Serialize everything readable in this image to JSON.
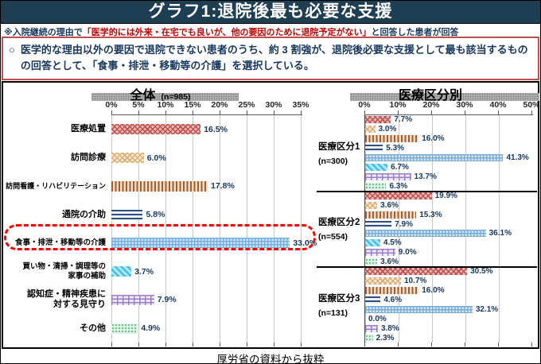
{
  "slide": {
    "title": "グラフ1:退院後最も必要な支援",
    "note": {
      "prefix": "※入院継続の理由で",
      "quote": "「医学的には外来・在宅でも良いが、他の要因のために退院予定がない」",
      "suffix": "と回答した患者が回答"
    },
    "summary_marker": "○",
    "summary_text": "医学的な理由以外の要因で退院できない患者のうち、約 3 割強が、退院後必要な支援として最も該当するものの回答として、「食事・排泄・移動等の介護」を選択している。",
    "caption": "厚労省の資料から抜粋"
  },
  "colors": {
    "title_bar_bg": "#1d3e53",
    "title_text": "#ffffff",
    "note_quote_red": "#c00000",
    "summary_border_red": "#c0504d",
    "value_label_navy": "#17375e",
    "highlight_dashed_red": "#ff0000",
    "gridline_gray": "#c8c8c8",
    "header_band_gray": "#a6a6a6"
  },
  "category_patterns": [
    {
      "category": "医療処置",
      "style": "lattice",
      "base": "#e9bcbc",
      "accent": "#c0504d"
    },
    {
      "category": "訪問診療",
      "style": "lattice",
      "base": "#f6ecd8",
      "accent": "#ddab72"
    },
    {
      "category": "訪問看護・リハビリテーション",
      "style": "vstripes",
      "base": "#f1e0d0",
      "accent": "#a85a28"
    },
    {
      "category": "通院の介助",
      "style": "hstripes",
      "base": "#eef2f8",
      "accent": "#2e4e80"
    },
    {
      "category": "食事・排泄・移動等の介護",
      "style": "plaid",
      "base": "#d3e5f5",
      "accent": "#79aeda"
    },
    {
      "category": "買い物・清掃・調理等の家事の補助",
      "style": "diag",
      "base": "#b3e6f5",
      "accent": "#41bfe8"
    },
    {
      "category": "認知症・精神疾患に対する見守り",
      "style": "brick",
      "base": "#efe8f8",
      "accent": "#9b7fc4"
    },
    {
      "category": "その他",
      "style": "dots",
      "base": "#ddf2e4",
      "accent": "#6fbe8e"
    }
  ],
  "chart_data": [
    {
      "type": "bar",
      "orientation": "horizontal",
      "title": "全体",
      "n_label": "(n=985)",
      "xlabel": "",
      "ylabel": "",
      "grid": true,
      "axis": {
        "min": 0,
        "max": 35,
        "step": 5,
        "tick_labels": [
          "0%",
          "5%",
          "10%",
          "15%",
          "20%",
          "25%",
          "30%",
          "35%"
        ]
      },
      "categories": [
        "医療処置",
        "訪問診療",
        "訪問看護・リハビリテーション",
        "通院の介助",
        "食事・排泄・移動等の介護",
        "買い物・清掃・調理等の\n家事の補助",
        "認知症・精神疾患に\n対する見守り",
        "その他"
      ],
      "values": [
        16.5,
        6.0,
        17.8,
        5.8,
        33.0,
        3.7,
        7.9,
        4.9
      ],
      "value_labels": [
        "16.5%",
        "6.0%",
        "17.8%",
        "5.8%",
        "33.0%",
        "3.7%",
        "7.9%",
        "4.9%"
      ],
      "highlight_category": "食事・排泄・移動等の介護",
      "highlight_index": 4
    },
    {
      "type": "bar",
      "orientation": "horizontal",
      "title": "医療区分別",
      "xlabel": "",
      "ylabel": "",
      "grid": true,
      "axis": {
        "min": 0,
        "max": 50,
        "step": 10,
        "tick_labels": [
          "0%",
          "10%",
          "20%",
          "30%",
          "40%",
          "50%"
        ]
      },
      "categories": [
        "医療処置",
        "訪問診療",
        "訪問看護・リハビリテーション",
        "通院の介助",
        "食事・排泄・移動等の介護",
        "買い物・清掃・調理等の家事の補助",
        "認知症・精神疾患に対する見守り",
        "その他"
      ],
      "series": [
        {
          "name": "医療区分1",
          "n_label": "(n=300)",
          "values": [
            7.7,
            3.0,
            16.0,
            5.3,
            41.3,
            6.7,
            13.7,
            6.3
          ],
          "value_labels": [
            "7.7%",
            "3.0%",
            "16.0%",
            "5.3%",
            "41.3%",
            "6.7%",
            "13.7%",
            "6.3%"
          ]
        },
        {
          "name": "医療区分2",
          "n_label": "(n=554)",
          "values": [
            19.9,
            3.6,
            15.3,
            7.9,
            36.1,
            4.5,
            9.0,
            3.6
          ],
          "value_labels": [
            "19.9%",
            "3.6%",
            "15.3%",
            "7.9%",
            "36.1%",
            "4.5%",
            "9.0%",
            "3.6%"
          ]
        },
        {
          "name": "医療区分3",
          "n_label": "(n=131)",
          "values": [
            30.5,
            10.7,
            16.0,
            4.6,
            32.1,
            0.0,
            3.8,
            2.3
          ],
          "value_labels": [
            "30.5%",
            "10.7%",
            "16.0%",
            "4.6%",
            "32.1%",
            "0.0%",
            "3.8%",
            "2.3%"
          ]
        }
      ]
    }
  ]
}
